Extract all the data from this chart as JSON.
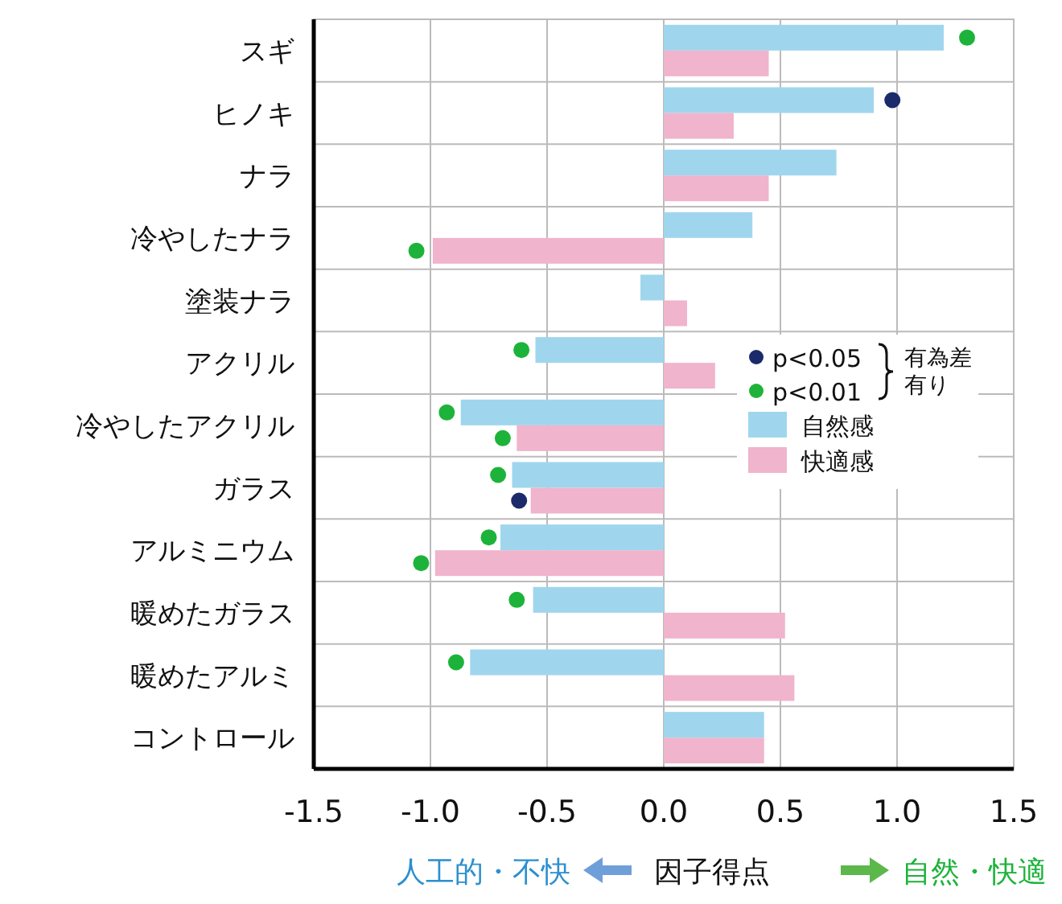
{
  "chart_data": {
    "type": "bar",
    "orientation": "horizontal",
    "categories": [
      "スギ",
      "ヒノキ",
      "ナラ",
      "冷やしたナラ",
      "塗装ナラ",
      "アクリル",
      "冷やしたアクリル",
      "ガラス",
      "アルミニウム",
      "暖めたガラス",
      "暖めたアルミ",
      "コントロール"
    ],
    "series": [
      {
        "name": "自然感",
        "color": "#9fd6ee",
        "values": [
          1.2,
          0.9,
          0.74,
          0.38,
          -0.1,
          -0.55,
          -0.87,
          -0.65,
          -0.7,
          -0.56,
          -0.83,
          0.43
        ]
      },
      {
        "name": "快適感",
        "color": "#f0b4cc",
        "values": [
          0.45,
          0.3,
          0.45,
          -0.99,
          0.1,
          0.22,
          -0.63,
          -0.57,
          -0.98,
          0.52,
          0.56,
          0.43
        ]
      },
      {
        "type": "scatter",
        "name": "p<0.05",
        "color": "#1b2a6b",
        "values": [
          null,
          0.98,
          null,
          null,
          null,
          null,
          null,
          null,
          null,
          null,
          null,
          null
        ]
      },
      {
        "type": "scatter",
        "color": "#1b2a6b",
        "values": [
          null,
          null,
          null,
          null,
          null,
          null,
          null,
          -0.62,
          null,
          null,
          null,
          null
        ]
      },
      {
        "type": "scatter",
        "name": "p<0.01",
        "color": "#1db33a",
        "values": [
          1.3,
          null,
          null,
          null,
          null,
          -0.61,
          -0.93,
          -0.71,
          -0.75,
          -0.63,
          -0.89,
          null
        ]
      },
      {
        "type": "scatter",
        "color": "#1db33a",
        "values": [
          null,
          null,
          null,
          -1.06,
          null,
          null,
          -0.69,
          null,
          -1.04,
          null,
          null,
          null
        ]
      }
    ],
    "xlim": [
      -1.5,
      1.5
    ],
    "xticks": [
      -1.5,
      {
        "value": -1,
        "label": "-1.0"
      },
      -0.5,
      {
        "value": 0,
        "label": "0.0"
      },
      0.5,
      {
        "value": 1,
        "label": "1.0"
      },
      1.5
    ],
    "xlabel": "因子得点",
    "grid": true,
    "legend": "right",
    "annotations": [
      "有為差有り",
      "人工的・不快",
      "自然・快適"
    ]
  }
}
